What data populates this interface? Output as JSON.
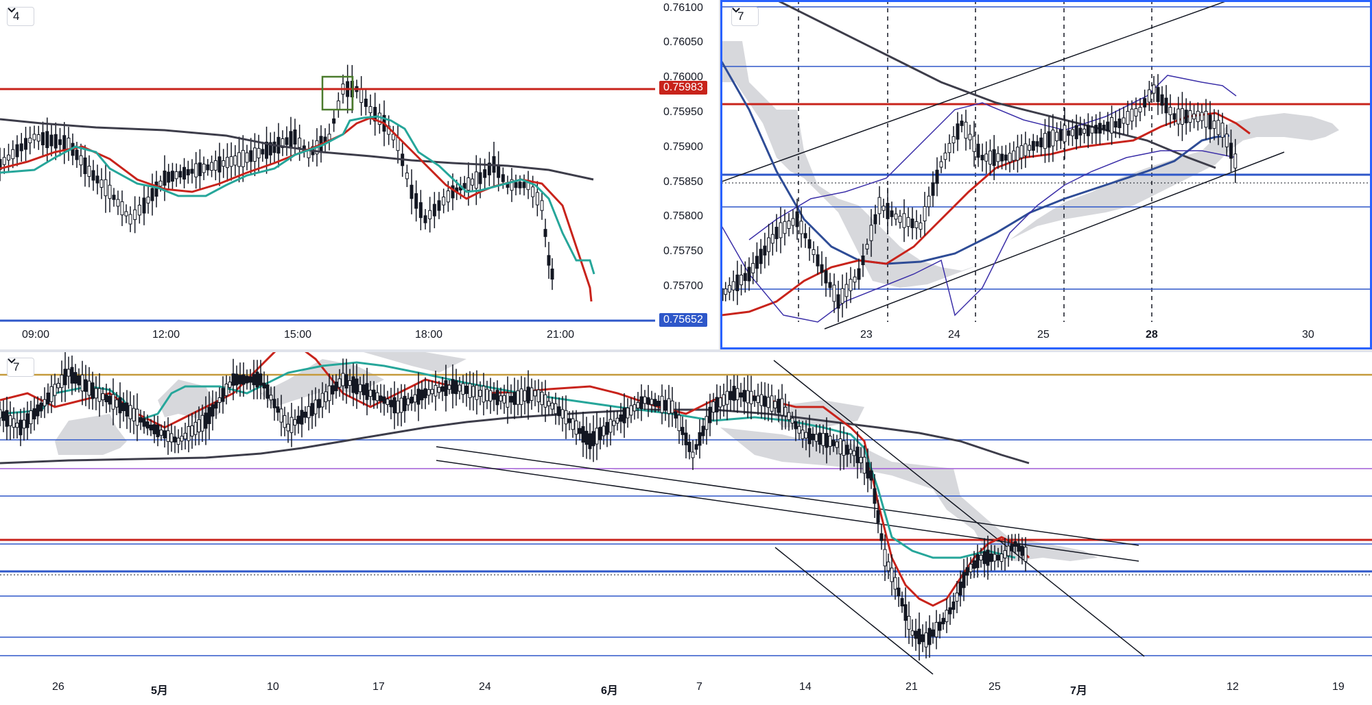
{
  "panes": {
    "top_left": {
      "badge": "4",
      "price_labels": [
        "0.76100",
        "0.76050",
        "0.76000",
        "0.75950",
        "0.75900",
        "0.75850",
        "0.75800",
        "0.75750",
        "0.75700"
      ],
      "red_price_tag": "0.75983",
      "blue_price_tag": "0.75652",
      "time_labels": [
        "09:00",
        "12:00",
        "15:00",
        "18:00",
        "21:00"
      ]
    },
    "top_right": {
      "badge": "7",
      "time_labels": [
        "23",
        "24",
        "25",
        "28",
        "30"
      ]
    },
    "bottom": {
      "badge": "7",
      "time_labels": [
        "26",
        "5月",
        "10",
        "17",
        "24",
        "6月",
        "7",
        "14",
        "21",
        "25",
        "7月",
        "12",
        "19"
      ]
    }
  },
  "colors": {
    "red_line": "#c8231b",
    "teal_line": "#26a69a",
    "dark_ma": "#3d3d4a",
    "blue_hline": "#2e57c9",
    "orange_hline": "#c59a3b",
    "purple_hline": "#a05bd6",
    "cloud": "#c9cbd0",
    "selected_border": "#2962ff"
  }
}
